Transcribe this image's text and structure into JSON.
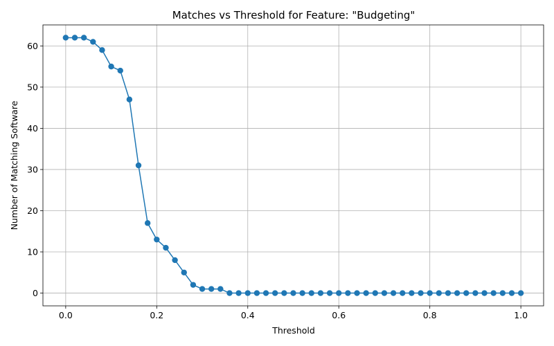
{
  "chart_data": {
    "type": "line",
    "title": "Matches vs Threshold for Feature: \"Budgeting\"",
    "xlabel": "Threshold",
    "ylabel": "Number of Matching Software",
    "xlim": [
      -0.05,
      1.05
    ],
    "ylim": [
      -3.1,
      65.1
    ],
    "x_ticks": [
      0.0,
      0.2,
      0.4,
      0.6,
      0.8,
      1.0
    ],
    "x_tick_labels": [
      "0.0",
      "0.2",
      "0.4",
      "0.6",
      "0.8",
      "1.0"
    ],
    "y_ticks": [
      0,
      10,
      20,
      30,
      40,
      50,
      60
    ],
    "y_tick_labels": [
      "0",
      "10",
      "20",
      "30",
      "40",
      "50",
      "60"
    ],
    "grid": true,
    "marker": "circle",
    "series": [
      {
        "color": "#1f77b4",
        "x": [
          0.0,
          0.02,
          0.04,
          0.06,
          0.08,
          0.1,
          0.12,
          0.14,
          0.16,
          0.18,
          0.2,
          0.22,
          0.24,
          0.26,
          0.28,
          0.3,
          0.32,
          0.34,
          0.36,
          0.38,
          0.4,
          0.42,
          0.44,
          0.46,
          0.48,
          0.5,
          0.52,
          0.54,
          0.56,
          0.58,
          0.6,
          0.62,
          0.64,
          0.66,
          0.68,
          0.7,
          0.72,
          0.74,
          0.76,
          0.78,
          0.8,
          0.82,
          0.84,
          0.86,
          0.88,
          0.9,
          0.92,
          0.94,
          0.96,
          0.98,
          1.0
        ],
        "y": [
          62,
          62,
          62,
          61,
          59,
          55,
          54,
          47,
          31,
          17,
          13,
          11,
          8,
          5,
          2,
          1,
          1,
          1,
          0,
          0,
          0,
          0,
          0,
          0,
          0,
          0,
          0,
          0,
          0,
          0,
          0,
          0,
          0,
          0,
          0,
          0,
          0,
          0,
          0,
          0,
          0,
          0,
          0,
          0,
          0,
          0,
          0,
          0,
          0,
          0,
          0
        ]
      }
    ]
  }
}
